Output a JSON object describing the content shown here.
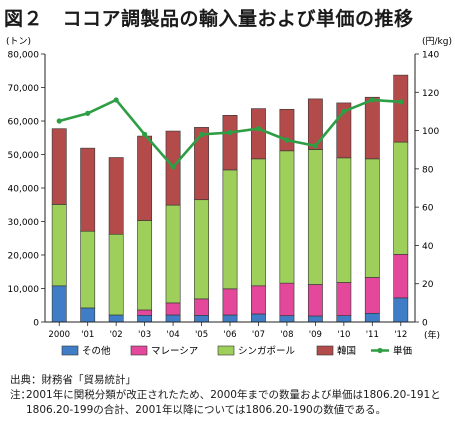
{
  "title": "図２　ココア調製品の輸入量および単価の推移",
  "chart_data": {
    "type": "bar",
    "stacked": true,
    "title": "図２　ココア調製品の輸入量および単価の推移",
    "y_left_unit": "(トン)",
    "y_right_unit": "(円/kg)",
    "x_unit": "(年)",
    "categories": [
      "2000",
      "'01",
      "'02",
      "'03",
      "'04",
      "'05",
      "'06",
      "'07",
      "'08",
      "'09",
      "'10",
      "'11",
      "'12"
    ],
    "ylim_left": [
      0,
      80000
    ],
    "yticks_left": [
      "0",
      "10,000",
      "20,000",
      "30,000",
      "40,000",
      "50,000",
      "60,000",
      "70,000",
      "80,000"
    ],
    "ylim_right": [
      0,
      140
    ],
    "yticks_right": [
      "0",
      "20",
      "40",
      "60",
      "80",
      "100",
      "120",
      "140"
    ],
    "grid": false,
    "legend_position": "bottom",
    "series": [
      {
        "name": "その他",
        "type": "bar",
        "axis": "left",
        "color": "#3f7ec6",
        "values": [
          10800,
          4200,
          2100,
          2000,
          2100,
          2000,
          2100,
          2400,
          1900,
          1800,
          1900,
          2600,
          7200
        ]
      },
      {
        "name": "マレーシア",
        "type": "bar",
        "axis": "left",
        "color": "#e3489a",
        "values": [
          0,
          0,
          0,
          1600,
          3600,
          4900,
          7800,
          8400,
          9700,
          9400,
          9900,
          10700,
          13000
        ]
      },
      {
        "name": "シンガポール",
        "type": "bar",
        "axis": "left",
        "color": "#9dcf5a",
        "values": [
          24300,
          22900,
          24100,
          26700,
          29200,
          29600,
          35500,
          37900,
          39500,
          40300,
          37200,
          35400,
          33500
        ]
      },
      {
        "name": "韓国",
        "type": "bar",
        "axis": "left",
        "color": "#b34b4b",
        "values": [
          22600,
          24800,
          22900,
          25200,
          22100,
          21600,
          16300,
          15000,
          12400,
          15100,
          16400,
          18400,
          20000
        ]
      },
      {
        "name": "単価",
        "type": "line",
        "axis": "right",
        "color": "#2e9e45",
        "values": [
          105,
          109,
          116,
          98,
          81,
          98,
          99,
          101,
          95,
          92,
          110,
          116,
          115
        ]
      }
    ]
  },
  "source": "出典：財務省「貿易統計」",
  "note": {
    "label": "注：",
    "text": "2001年に関税分類が改正されたため、2000年までの数量および単価は1806.20-191と1806.20-199の合計、2001年以降については1806.20-190の数値である。"
  }
}
